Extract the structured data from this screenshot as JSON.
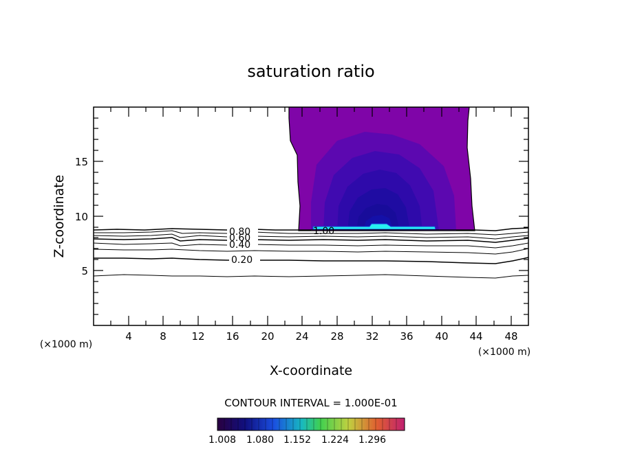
{
  "chart_data": {
    "type": "contour",
    "title": "saturation ratio",
    "xlabel": "X-coordinate",
    "ylabel": "Z-coordinate",
    "x_unit_left": "(×1000 m)",
    "x_unit_right": "(×1000 m)",
    "xlim": [
      0,
      50
    ],
    "ylim": [
      0,
      20
    ],
    "x_ticks": [
      "4",
      "8",
      "12",
      "16",
      "20",
      "24",
      "28",
      "32",
      "36",
      "40",
      "44",
      "48"
    ],
    "y_ticks": [
      "5",
      "10",
      "15"
    ],
    "contour_labels": [
      "0.20",
      "0.40",
      "0.60",
      "0.80",
      "1.00"
    ],
    "contour_interval_text": "CONTOUR INTERVAL = 1.000E-01",
    "colorbar_labels": [
      "1.008",
      "1.080",
      "1.152",
      "1.224",
      "1.296"
    ],
    "supersaturated_region": {
      "x_range": [
        23,
        43.5
      ],
      "z_range": [
        8.8,
        20
      ]
    },
    "colors": {
      "fill_purple": "#7f05a8",
      "fill_dark_blue": "#1a0a9c",
      "fill_cyan": "#27f0f0"
    }
  }
}
